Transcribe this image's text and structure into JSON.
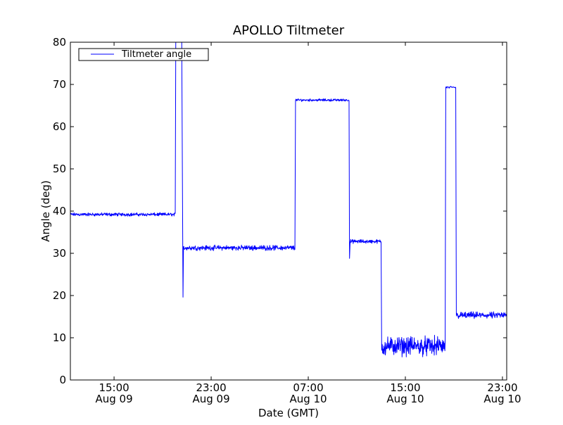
{
  "chart_data": {
    "type": "line",
    "title": "APOLLO Tiltmeter",
    "xlabel": "Date (GMT)",
    "ylabel": "Angle (deg)",
    "x_units": "hours since Aug 09 00:00 GMT",
    "xlim": [
      11.4,
      47.35
    ],
    "ylim": [
      0,
      80
    ],
    "yticks": [
      0,
      10,
      20,
      30,
      40,
      50,
      60,
      70,
      80
    ],
    "xticks": [
      {
        "value": 15,
        "time": "15:00",
        "date": "Aug 09"
      },
      {
        "value": 23,
        "time": "23:00",
        "date": "Aug 09"
      },
      {
        "value": 31,
        "time": "07:00",
        "date": "Aug 10"
      },
      {
        "value": 39,
        "time": "15:00",
        "date": "Aug 10"
      },
      {
        "value": 47,
        "time": "23:00",
        "date": "Aug 10"
      }
    ],
    "grid": false,
    "legend": {
      "position": "top-left",
      "entries": [
        "Tiltmeter angle"
      ]
    },
    "series": [
      {
        "name": "Tiltmeter angle",
        "color": "#0000ff",
        "segments": [
          {
            "start": 11.4,
            "end": 20.04,
            "level": 39.2,
            "noise": 0.3
          },
          {
            "start": 20.1,
            "end": 20.55,
            "level": 95,
            "noise": 0
          },
          {
            "start": 20.68,
            "end": 20.68,
            "level": 19.6,
            "noise": 0
          },
          {
            "start": 20.72,
            "end": 29.9,
            "level": 31.3,
            "noise": 0.45
          },
          {
            "start": 29.95,
            "end": 34.36,
            "level": 66.3,
            "noise": 0.22
          },
          {
            "start": 34.4,
            "end": 34.4,
            "level": 28.8,
            "noise": 0
          },
          {
            "start": 34.45,
            "end": 37.0,
            "level": 32.8,
            "noise": 0.35
          },
          {
            "start": 37.05,
            "end": 42.28,
            "level": 8.0,
            "noise": 1.7
          },
          {
            "start": 42.33,
            "end": 43.15,
            "level": 69.3,
            "noise": 0.2
          },
          {
            "start": 43.2,
            "end": 47.35,
            "level": 15.3,
            "noise": 0.6
          }
        ]
      }
    ]
  }
}
